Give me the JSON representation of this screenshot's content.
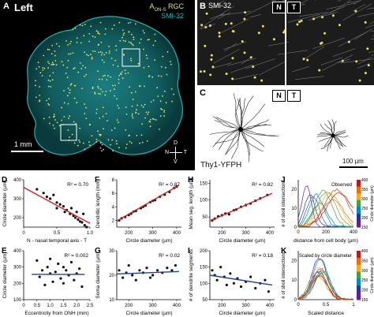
{
  "panels": {
    "A": {
      "letter": "A",
      "title": "Left",
      "legend_rgc": "A",
      "legend_rgc_sub": "ON-S",
      "legend_rgc_suffix": " RGC",
      "legend_smi": "SMI-32",
      "scale": "1 mm",
      "compass": {
        "n": "N",
        "t": "T",
        "d": "D",
        "v": "V"
      },
      "colors": {
        "smi": "#1fb5b5",
        "rgc": "#e3e36a",
        "bg": "#000000"
      }
    },
    "B": {
      "letter": "B",
      "label": "SMI-32",
      "n": "N",
      "t": "T"
    },
    "C": {
      "letter": "C",
      "n": "N",
      "t": "T",
      "line_label": "Thy1-YFPH",
      "scale": "100 µm"
    },
    "D": {
      "letter": "D",
      "stat": "R² = 0.70",
      "ylabel": "Circle diameter (µm)",
      "xlabel": "N - nasal temporal axis - T"
    },
    "E": {
      "letter": "E",
      "stat": "R² = 0.002",
      "ylabel": "Circle diameter (µm)",
      "xlabel": "Eccentricity from ONH (mm)"
    },
    "F": {
      "letter": "F",
      "stat": "R² = 0.87",
      "ylabel": "Dendritic length (mm)",
      "xlabel": "Circle diameter (µm)"
    },
    "G": {
      "letter": "G",
      "stat": "R² = 0.02",
      "ylabel": "Soma diameter (µm)",
      "xlabel": "Circle diameter (µm)"
    },
    "H": {
      "letter": "H",
      "stat": "R² = 0.82",
      "ylabel": "Mean seg. length (µm)",
      "xlabel": "Circle diameter (µm)"
    },
    "I": {
      "letter": "I",
      "stat": "R² = 0.18",
      "ylabel": "# of dendrite segments",
      "xlabel": "Circle diameter (µm)"
    },
    "J": {
      "letter": "J",
      "legend": "Observed",
      "ylabel": "# of sholl intersections",
      "xlabel": "distance from cell body (µm)",
      "colorbar_label": "Circle diameter (µm)"
    },
    "K": {
      "letter": "K",
      "legend": "Scaled by circle diameter",
      "ylabel": "# of sholl intersections",
      "xlabel": "Scaled distance",
      "colorbar_label": "Circle diameter (µm)"
    }
  },
  "chart_data": [
    {
      "id": "D",
      "type": "scatter",
      "x": [
        0.2,
        0.3,
        0.35,
        0.4,
        0.45,
        0.5,
        0.5,
        0.55,
        0.6,
        0.62,
        0.65,
        0.7,
        0.72,
        0.75,
        0.78,
        0.8,
        0.82,
        0.85,
        0.88,
        0.9,
        0.92,
        0.95
      ],
      "y": [
        350,
        330,
        310,
        300,
        320,
        280,
        250,
        270,
        260,
        230,
        240,
        220,
        250,
        210,
        200,
        230,
        190,
        180,
        175,
        220,
        160,
        150
      ],
      "fit": {
        "x": [
          0.0,
          1.0
        ],
        "y": [
          360,
          170
        ],
        "color": "#d62020"
      },
      "xlim": [
        0,
        1.0
      ],
      "ylim": [
        150,
        400
      ],
      "xticks": [
        "0",
        "0.5",
        "1.0"
      ],
      "yticks": [
        "200",
        "300",
        "400"
      ]
    },
    {
      "id": "E",
      "type": "scatter",
      "x": [
        0.5,
        0.6,
        0.7,
        0.8,
        0.9,
        1.0,
        1.0,
        1.1,
        1.2,
        1.3,
        1.4,
        1.5,
        1.5,
        1.6,
        1.7,
        1.8,
        1.9,
        2.0,
        2.1,
        2.2
      ],
      "y": [
        340,
        240,
        280,
        190,
        300,
        260,
        350,
        210,
        270,
        320,
        230,
        300,
        200,
        280,
        250,
        330,
        220,
        260,
        290,
        180
      ],
      "fit": {
        "x": [
          0.3,
          2.3
        ],
        "y": [
          255,
          255
        ],
        "color": "#2040a0"
      },
      "xlim": [
        0,
        2.5
      ],
      "ylim": [
        100,
        400
      ],
      "xticks": [
        "0",
        "0.5",
        "1.0",
        "1.5",
        "2.0",
        "2.5"
      ],
      "yticks": [
        "100",
        "200",
        "300",
        "400"
      ]
    },
    {
      "id": "F",
      "type": "scatter",
      "x": [
        160,
        170,
        185,
        200,
        210,
        220,
        230,
        250,
        260,
        270,
        290,
        300,
        310,
        330,
        350,
        370,
        390,
        400
      ],
      "y": [
        2.0,
        2.3,
        2.5,
        2.8,
        3.0,
        3.3,
        3.4,
        3.8,
        4.0,
        4.2,
        4.7,
        4.9,
        5.0,
        5.5,
        5.8,
        6.2,
        6.8,
        7.0
      ],
      "fit": {
        "x": [
          150,
          410
        ],
        "y": [
          1.9,
          7.2
        ],
        "color": "#d62020"
      },
      "xlim": [
        150,
        420
      ],
      "ylim": [
        1,
        8
      ],
      "xticks": [
        "200",
        "300",
        "400"
      ],
      "yticks": [
        "2",
        "4",
        "6",
        "8"
      ]
    },
    {
      "id": "G",
      "type": "scatter",
      "x": [
        160,
        175,
        190,
        200,
        215,
        230,
        245,
        260,
        275,
        290,
        300,
        320,
        340,
        360,
        380,
        395
      ],
      "y": [
        22,
        19,
        21,
        24,
        20,
        18,
        22,
        21,
        23,
        19,
        20,
        22,
        21,
        23,
        22,
        24
      ],
      "fit": {
        "x": [
          150,
          410
        ],
        "y": [
          20.5,
          21.5
        ],
        "color": "#2040a0"
      },
      "xlim": [
        150,
        420
      ],
      "ylim": [
        10,
        30
      ],
      "xticks": [
        "200",
        "300",
        "400"
      ],
      "yticks": [
        "10",
        "20",
        "30"
      ]
    },
    {
      "id": "H",
      "type": "scatter",
      "x": [
        160,
        170,
        185,
        200,
        215,
        230,
        250,
        260,
        280,
        300,
        320,
        340,
        360,
        390
      ],
      "y": [
        40,
        45,
        52,
        55,
        60,
        58,
        70,
        72,
        80,
        85,
        90,
        98,
        105,
        115
      ],
      "fit": {
        "x": [
          150,
          410
        ],
        "y": [
          38,
          120
        ],
        "color": "#d62020"
      },
      "xlim": [
        150,
        420
      ],
      "ylim": [
        20,
        160
      ],
      "xticks": [
        "200",
        "300",
        "400"
      ],
      "yticks": [
        "50",
        "100",
        "150"
      ]
    },
    {
      "id": "I",
      "type": "scatter",
      "x": [
        160,
        170,
        180,
        195,
        210,
        220,
        235,
        250,
        265,
        280,
        300,
        320,
        340,
        360,
        380,
        395
      ],
      "y": [
        140,
        125,
        110,
        150,
        120,
        95,
        130,
        100,
        115,
        90,
        105,
        120,
        85,
        100,
        110,
        75
      ],
      "fit": {
        "x": [
          150,
          410
        ],
        "y": [
          125,
          95
        ],
        "color": "#2040a0"
      },
      "xlim": [
        150,
        420
      ],
      "ylim": [
        50,
        200
      ],
      "xticks": [
        "200",
        "300",
        "400"
      ],
      "yticks": [
        "50",
        "100",
        "150",
        "200"
      ]
    },
    {
      "id": "J",
      "type": "line",
      "xlim": [
        0,
        400
      ],
      "ylim": [
        0,
        25
      ],
      "xticks": [
        "0",
        "200",
        "400"
      ],
      "yticks": [
        "0",
        "10",
        "20"
      ],
      "colorbar_ticks": [
        "400",
        "350",
        "300",
        "250",
        "200",
        "150"
      ]
    },
    {
      "id": "K",
      "type": "line",
      "xlim": [
        0,
        1
      ],
      "ylim": [
        0,
        25
      ],
      "xticks": [
        "0",
        "0.5",
        "1"
      ],
      "yticks": [
        "0",
        "10",
        "20"
      ],
      "colorbar_ticks": [
        "400",
        "350",
        "300",
        "250",
        "200",
        "150"
      ]
    }
  ]
}
